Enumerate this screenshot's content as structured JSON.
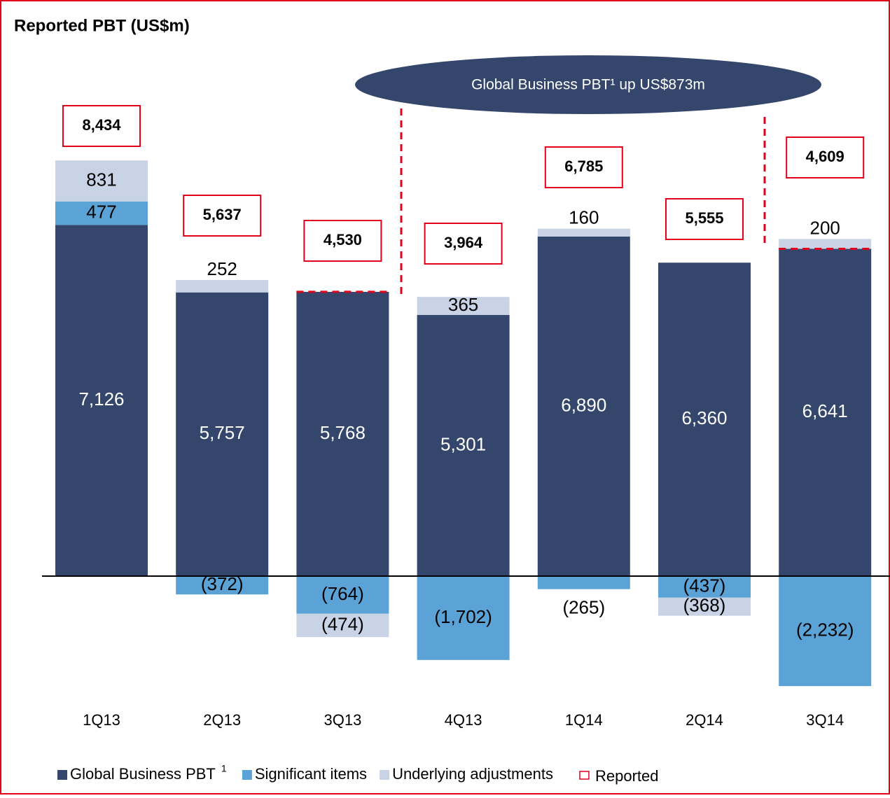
{
  "chart_data": {
    "type": "stacked-bar",
    "title": "Reported PBT (US$m)",
    "annotation": "Global Business  PBT¹ up US$873m",
    "categories": [
      "1Q13",
      "2Q13",
      "3Q13",
      "4Q13",
      "1Q14",
      "2Q14",
      "3Q14"
    ],
    "series": [
      {
        "name": "Global Business PBT",
        "footnote": "1",
        "color": "#34466b",
        "values": [
          7126,
          5757,
          5768,
          5301,
          6890,
          6360,
          6641
        ],
        "value_labels": [
          "7,126",
          "5,757",
          "5,768",
          "5,301",
          "6,890",
          "6,360",
          "6,641"
        ]
      },
      {
        "name": "Significant items",
        "color": "#5ba3d6",
        "values": [
          477,
          -372,
          -764,
          -1702,
          -265,
          -437,
          -2232
        ],
        "value_labels": [
          "477",
          "(372)",
          "(764)",
          "(1,702)",
          "(265)",
          "(437)",
          "(2,232)"
        ]
      },
      {
        "name": "Underlying adjustments",
        "color": "#c9d3e6",
        "values": [
          831,
          252,
          -474,
          365,
          160,
          -368,
          200
        ],
        "value_labels": [
          "831",
          "252",
          "(474)",
          "365",
          "160",
          "(368)",
          "200"
        ]
      }
    ],
    "reported": {
      "name": "Reported",
      "color": "#e3001b",
      "values": [
        8434,
        5637,
        4530,
        3964,
        6785,
        5555,
        4609
      ],
      "value_labels": [
        "8,434",
        "5,637",
        "4,530",
        "3,964",
        "6,785",
        "5,555",
        "4,609"
      ]
    }
  }
}
